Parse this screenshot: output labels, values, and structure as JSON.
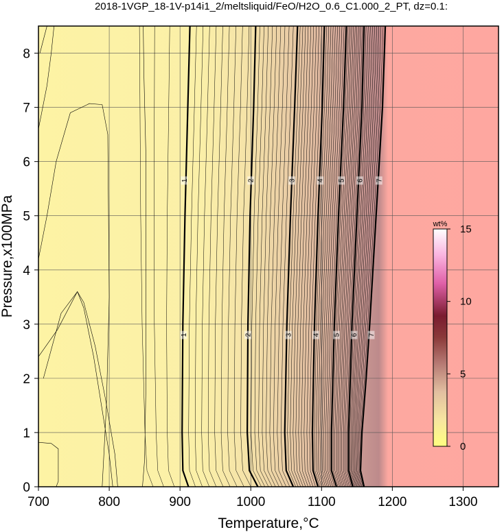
{
  "chart_data": {
    "type": "heatmap",
    "title": "2018-1VGP_18-1V-p14i1_2/meltsliquid/FeO/H2O_0.6_C1.000_2_PT, dz=0.1:",
    "xlabel": "Temperature,°C",
    "ylabel": "Pressure,x100MPa",
    "xlim": [
      700,
      1350
    ],
    "ylim": [
      0,
      8.5
    ],
    "x_ticks": [
      700,
      800,
      900,
      1000,
      1100,
      1200,
      1300
    ],
    "y_ticks": [
      0,
      1,
      2,
      3,
      4,
      5,
      6,
      7,
      8
    ],
    "grid": true,
    "colorbar": {
      "label": "wt%",
      "range": [
        0,
        15
      ],
      "ticks": [
        0,
        5,
        10,
        15
      ],
      "placement": "right-inside"
    },
    "major_contours": [
      {
        "level": 1,
        "label_positions": [
          {
            "T": 906,
            "P": 5.65
          },
          {
            "T": 905,
            "P": 2.8
          }
        ],
        "points": [
          [
            912,
            0
          ],
          [
            904,
            0.3
          ],
          [
            903,
            1
          ],
          [
            904,
            3
          ],
          [
            907,
            5
          ],
          [
            911,
            7
          ],
          [
            914,
            8.5
          ]
        ]
      },
      {
        "level": 2,
        "label_positions": [
          {
            "T": 1000,
            "P": 5.65
          },
          {
            "T": 996,
            "P": 2.8
          }
        ],
        "points": [
          [
            1010,
            0
          ],
          [
            998,
            0.3
          ],
          [
            995,
            1
          ],
          [
            996,
            3
          ],
          [
            999,
            5
          ],
          [
            1004,
            7
          ],
          [
            1007,
            8.5
          ]
        ]
      },
      {
        "level": 3,
        "label_positions": [
          {
            "T": 1058,
            "P": 5.65
          },
          {
            "T": 1053,
            "P": 2.8
          }
        ],
        "points": [
          [
            1060,
            0
          ],
          [
            1050,
            0.3
          ],
          [
            1048,
            1
          ],
          [
            1051,
            3
          ],
          [
            1056,
            5
          ],
          [
            1062,
            7
          ],
          [
            1066,
            8.5
          ]
        ]
      },
      {
        "level": 4,
        "label_positions": [
          {
            "T": 1098,
            "P": 5.65
          },
          {
            "T": 1092,
            "P": 2.8
          }
        ],
        "points": [
          [
            1095,
            0
          ],
          [
            1088,
            0.3
          ],
          [
            1087,
            1
          ],
          [
            1090,
            3
          ],
          [
            1095,
            5
          ],
          [
            1101,
            7
          ],
          [
            1104,
            8.5
          ]
        ]
      },
      {
        "level": 5,
        "label_positions": [
          {
            "T": 1128,
            "P": 5.65
          },
          {
            "T": 1121,
            "P": 2.8
          }
        ],
        "points": [
          [
            1121,
            0
          ],
          [
            1114,
            0.3
          ],
          [
            1114,
            1
          ],
          [
            1118,
            3
          ],
          [
            1124,
            5
          ],
          [
            1131,
            7
          ],
          [
            1135,
            8.5
          ]
        ]
      },
      {
        "level": 6,
        "label_positions": [
          {
            "T": 1154,
            "P": 5.65
          },
          {
            "T": 1146,
            "P": 2.8
          }
        ],
        "points": [
          [
            1144,
            0
          ],
          [
            1138,
            0.3
          ],
          [
            1138,
            1
          ],
          [
            1143,
            3
          ],
          [
            1150,
            5
          ],
          [
            1157,
            7
          ],
          [
            1160,
            8.5
          ]
        ]
      },
      {
        "level": 7,
        "label_positions": [
          {
            "T": 1181,
            "P": 5.65
          },
          {
            "T": 1170,
            "P": 2.8
          }
        ],
        "points": [
          [
            1160,
            0
          ],
          [
            1155,
            0.3
          ],
          [
            1157,
            1
          ],
          [
            1163,
            2
          ],
          [
            1168,
            3
          ],
          [
            1177,
            5
          ],
          [
            1186,
            7
          ],
          [
            1190,
            8.5
          ]
        ]
      }
    ],
    "low_value_contours": [
      [
        [
          700,
          0.82
        ],
        [
          718,
          0.8
        ],
        [
          728,
          0.7
        ],
        [
          728,
          0.1
        ],
        [
          725,
          0
        ]
      ],
      [
        [
          707,
          2.0
        ],
        [
          732,
          3.2
        ],
        [
          755,
          3.6
        ],
        [
          764,
          3.4
        ],
        [
          780,
          2.6
        ],
        [
          795,
          1.6
        ],
        [
          808,
          0.6
        ],
        [
          812,
          0
        ]
      ],
      [
        [
          700,
          2.4
        ],
        [
          727,
          2.9
        ],
        [
          755,
          3.6
        ],
        [
          764,
          3.3
        ],
        [
          778,
          2.4
        ],
        [
          800,
          0.6
        ],
        [
          805,
          0
        ]
      ],
      [
        [
          700,
          4.2
        ],
        [
          712,
          5.0
        ],
        [
          725,
          6.0
        ],
        [
          745,
          6.9
        ],
        [
          772,
          7.07
        ],
        [
          790,
          7.05
        ],
        [
          798,
          6.5
        ],
        [
          800,
          3.5
        ],
        [
          796,
          1.5
        ],
        [
          790,
          0
        ]
      ],
      [
        [
          700,
          6.6
        ],
        [
          712,
          7.4
        ],
        [
          718,
          8.0
        ],
        [
          722,
          8.5
        ]
      ],
      [
        [
          702,
          8.0
        ],
        [
          712,
          8.5
        ]
      ],
      [
        [
          847,
          0
        ],
        [
          850,
          0.5
        ],
        [
          852,
          2
        ],
        [
          852,
          6
        ],
        [
          849,
          7.6
        ],
        [
          848,
          8.5
        ]
      ]
    ]
  }
}
